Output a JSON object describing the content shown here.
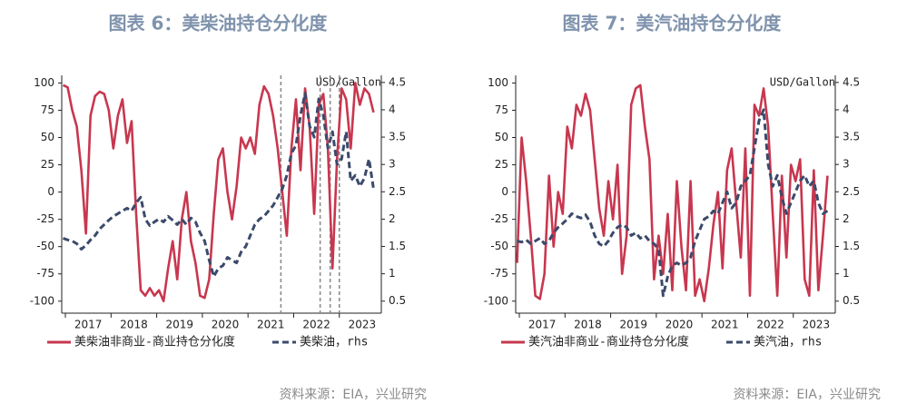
{
  "chart_data": [
    {
      "type": "line",
      "title": "图表 6：美柴油持仓分化度",
      "source": "资料来源：EIA，兴业研究",
      "y2_label": "USD/Gallon",
      "x": [
        2016.95,
        2017.05,
        2017.15,
        2017.25,
        2017.35,
        2017.45,
        2017.55,
        2017.65,
        2017.75,
        2017.85,
        2017.95,
        2018.05,
        2018.15,
        2018.25,
        2018.35,
        2018.45,
        2018.55,
        2018.65,
        2018.75,
        2018.85,
        2018.95,
        2019.05,
        2019.15,
        2019.25,
        2019.35,
        2019.45,
        2019.55,
        2019.65,
        2019.75,
        2019.85,
        2019.95,
        2020.05,
        2020.15,
        2020.25,
        2020.35,
        2020.45,
        2020.55,
        2020.65,
        2020.75,
        2020.85,
        2020.95,
        2021.05,
        2021.15,
        2021.25,
        2021.35,
        2021.45,
        2021.55,
        2021.65,
        2021.75,
        2021.85,
        2021.95,
        2022.05,
        2022.15,
        2022.25,
        2022.35,
        2022.45,
        2022.55,
        2022.65,
        2022.75,
        2022.85,
        2022.95,
        2023.05,
        2023.15,
        2023.25,
        2023.35,
        2023.45,
        2023.55,
        2023.65,
        2023.75
      ],
      "series": [
        {
          "name": "美柴油非商业-商业持仓分化度",
          "color": "#c8374f",
          "style": "solid",
          "values": [
            98,
            96,
            75,
            60,
            20,
            -38,
            70,
            88,
            92,
            90,
            75,
            40,
            70,
            85,
            45,
            65,
            -20,
            -90,
            -95,
            -88,
            -95,
            -90,
            -100,
            -70,
            -45,
            -80,
            -25,
            0,
            -45,
            -65,
            -95,
            -97,
            -80,
            -20,
            30,
            40,
            0,
            -25,
            5,
            50,
            40,
            50,
            35,
            80,
            97,
            90,
            70,
            40,
            0,
            -40,
            40,
            85,
            20,
            95,
            60,
            -20,
            80,
            90,
            40,
            -70,
            30,
            95,
            85,
            40,
            100,
            80,
            95,
            90,
            73
          ]
        },
        {
          "name": "美柴油，rhs",
          "color": "#3b4a6b",
          "style": "dashed",
          "axis": "y2",
          "values": [
            1.65,
            1.62,
            1.6,
            1.55,
            1.45,
            1.52,
            1.62,
            1.7,
            1.82,
            1.9,
            1.98,
            2.05,
            2.1,
            2.15,
            2.2,
            2.15,
            2.3,
            2.4,
            2.0,
            1.88,
            1.95,
            2.0,
            1.95,
            2.05,
            1.98,
            1.9,
            2.0,
            1.9,
            2.02,
            1.95,
            1.75,
            1.6,
            1.25,
            0.95,
            1.1,
            1.15,
            1.3,
            1.25,
            1.2,
            1.4,
            1.5,
            1.7,
            1.9,
            2.0,
            2.05,
            2.15,
            2.25,
            2.4,
            2.55,
            2.8,
            3.2,
            3.35,
            3.9,
            4.3,
            3.7,
            3.5,
            4.2,
            3.9,
            3.3,
            3.6,
            3.0,
            3.1,
            3.6,
            2.7,
            2.8,
            2.6,
            2.75,
            3.1,
            2.55
          ]
        }
      ],
      "vlines": [
        2021.72,
        2022.58,
        2022.8,
        2023.0
      ],
      "xlim": [
        2016.92,
        2023.92
      ],
      "xticks": [
        {
          "value": 2017.5,
          "label": "2017"
        },
        {
          "value": 2018.5,
          "label": "2018"
        },
        {
          "value": 2019.5,
          "label": "2019"
        },
        {
          "value": 2020.5,
          "label": "2020"
        },
        {
          "value": 2021.5,
          "label": "2021"
        },
        {
          "value": 2022.5,
          "label": "2022"
        },
        {
          "value": 2023.5,
          "label": "2023"
        }
      ],
      "ylim": [
        -111,
        107
      ],
      "yticks": [
        -100,
        -75,
        -50,
        -25,
        0,
        25,
        50,
        75,
        100
      ],
      "y2lim": [
        0.28,
        4.63
      ],
      "y2ticks": [
        0.5,
        1.0,
        1.5,
        2.0,
        2.5,
        3.0,
        3.5,
        4.0,
        4.5
      ]
    },
    {
      "type": "line",
      "title": "图表 7：美汽油持仓分化度",
      "source": "资料来源：EIA，兴业研究",
      "y2_label": "USD/Gallon",
      "x": [
        2016.95,
        2017.05,
        2017.15,
        2017.25,
        2017.35,
        2017.45,
        2017.55,
        2017.65,
        2017.75,
        2017.85,
        2017.95,
        2018.05,
        2018.15,
        2018.25,
        2018.35,
        2018.45,
        2018.55,
        2018.65,
        2018.75,
        2018.85,
        2018.95,
        2019.05,
        2019.15,
        2019.25,
        2019.35,
        2019.45,
        2019.55,
        2019.65,
        2019.75,
        2019.85,
        2019.95,
        2020.05,
        2020.15,
        2020.25,
        2020.35,
        2020.45,
        2020.55,
        2020.65,
        2020.75,
        2020.85,
        2020.95,
        2021.05,
        2021.15,
        2021.25,
        2021.35,
        2021.45,
        2021.55,
        2021.65,
        2021.75,
        2021.85,
        2021.95,
        2022.05,
        2022.15,
        2022.25,
        2022.35,
        2022.45,
        2022.55,
        2022.65,
        2022.75,
        2022.85,
        2022.95,
        2023.05,
        2023.15,
        2023.25,
        2023.35,
        2023.45,
        2023.55,
        2023.65,
        2023.75
      ],
      "series": [
        {
          "name": "美汽油非商业-商业持仓分化度",
          "color": "#c8374f",
          "style": "solid",
          "values": [
            -65,
            50,
            10,
            -40,
            -95,
            -98,
            -75,
            15,
            -50,
            0,
            -20,
            60,
            40,
            80,
            70,
            90,
            75,
            30,
            -15,
            -40,
            10,
            -25,
            25,
            -75,
            -40,
            80,
            95,
            98,
            60,
            30,
            -80,
            -40,
            -75,
            -20,
            -90,
            10,
            -50,
            -90,
            10,
            -95,
            -80,
            -100,
            -70,
            -30,
            0,
            -70,
            20,
            40,
            -10,
            -60,
            40,
            -95,
            80,
            70,
            95,
            60,
            -20,
            -95,
            15,
            -60,
            25,
            10,
            30,
            -80,
            -95,
            20,
            -90,
            -40,
            15
          ]
        },
        {
          "name": "美汽油，rhs",
          "color": "#3b4a6b",
          "style": "dashed",
          "axis": "y2",
          "values": [
            1.6,
            1.58,
            1.62,
            1.55,
            1.6,
            1.65,
            1.55,
            1.6,
            1.75,
            1.85,
            1.92,
            2.0,
            2.1,
            2.05,
            2.02,
            2.08,
            1.95,
            1.7,
            1.55,
            1.5,
            1.6,
            1.75,
            1.85,
            1.9,
            1.85,
            1.7,
            1.75,
            1.65,
            1.7,
            1.6,
            1.55,
            1.45,
            0.6,
            0.95,
            1.15,
            1.2,
            1.15,
            1.2,
            1.3,
            1.6,
            1.8,
            2.0,
            2.05,
            2.15,
            2.1,
            2.3,
            2.5,
            2.2,
            2.3,
            2.6,
            2.7,
            2.8,
            3.3,
            3.8,
            4.0,
            3.0,
            2.6,
            2.8,
            2.4,
            2.1,
            2.3,
            2.5,
            2.7,
            2.8,
            2.6,
            2.7,
            2.3,
            2.1,
            2.15
          ]
        }
      ],
      "xlim": [
        2016.92,
        2023.92
      ],
      "xticks": [
        {
          "value": 2017.5,
          "label": "2017"
        },
        {
          "value": 2018.5,
          "label": "2018"
        },
        {
          "value": 2019.5,
          "label": "2019"
        },
        {
          "value": 2020.5,
          "label": "2020"
        },
        {
          "value": 2021.5,
          "label": "2021"
        },
        {
          "value": 2022.5,
          "label": "2022"
        },
        {
          "value": 2023.5,
          "label": "2023"
        }
      ],
      "ylim": [
        -111,
        107
      ],
      "yticks": [
        -100,
        -75,
        -50,
        -25,
        0,
        25,
        50,
        75,
        100
      ],
      "y2lim": [
        0.28,
        4.63
      ],
      "y2ticks": [
        0.5,
        1.0,
        1.5,
        2.0,
        2.5,
        3.0,
        3.5,
        4.0,
        4.5
      ]
    }
  ]
}
